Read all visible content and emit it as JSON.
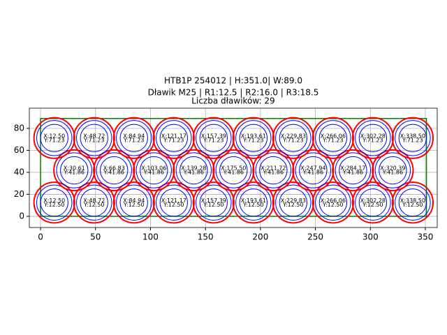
{
  "chart_data": {
    "type": "circle_layout",
    "title": [
      "HTB1P 254012 | H:351.0| W:89.0",
      "Dławik M25 | R1:12.5 | R2:16.0 | R3:18.5"
    ],
    "subtitle": "Liczba dławików: 29",
    "r1": 12.5,
    "r2": 16.0,
    "r3": 18.5,
    "rect": {
      "width": 351.0,
      "height": 89.0,
      "color": "#008000"
    },
    "x": [
      12.5,
      48.72,
      84.94,
      121.17,
      157.39,
      193.61,
      229.83,
      266.06,
      302.28,
      338.5,
      30.61,
      66.83,
      103.06,
      139.28,
      175.5,
      211.72,
      247.94,
      284.17,
      320.39,
      12.5,
      48.72,
      84.94,
      121.17,
      157.39,
      193.61,
      229.83,
      266.06,
      302.28,
      338.5
    ],
    "y": [
      12.5,
      12.5,
      12.5,
      12.5,
      12.5,
      12.5,
      12.5,
      12.5,
      12.5,
      12.5,
      41.86,
      41.86,
      41.86,
      41.86,
      41.86,
      41.86,
      41.86,
      41.86,
      41.86,
      71.23,
      71.23,
      71.23,
      71.23,
      71.23,
      71.23,
      71.23,
      71.23,
      71.23,
      71.23
    ],
    "x_labels": [
      "X:12.50",
      "X:48.72",
      "X:84.94",
      "X:121.17",
      "X:157.39",
      "X:193.61",
      "X:229.83",
      "X:266.06",
      "X:302.28",
      "X:338.50",
      "X:30.61",
      "X:66.83",
      "X:103.06",
      "X:139.28",
      "X:175.50",
      "X:211.72",
      "X:247.94",
      "X:284.17",
      "X:320.39",
      "X:12.50",
      "X:48.72",
      "X:84.94",
      "X:121.17",
      "X:157.39",
      "X:193.61",
      "X:229.83",
      "X:266.06",
      "X:302.28",
      "X:338.50"
    ],
    "y_labels": [
      "Y:12.50",
      "Y:12.50",
      "Y:12.50",
      "Y:12.50",
      "Y:12.50",
      "Y:12.50",
      "Y:12.50",
      "Y:12.50",
      "Y:12.50",
      "Y:12.50",
      "Y:41.86",
      "Y:41.86",
      "Y:41.86",
      "Y:41.86",
      "Y:41.86",
      "Y:41.86",
      "Y:41.86",
      "Y:41.86",
      "Y:41.86",
      "Y:71.23",
      "Y:71.23",
      "Y:71.23",
      "Y:71.23",
      "Y:71.23",
      "Y:71.23",
      "Y:71.23",
      "Y:71.23",
      "Y:71.23",
      "Y:71.23"
    ],
    "outer_color": "#ff0000",
    "inner_color": "#0000ff",
    "xlim": [
      -10.2,
      360.8
    ],
    "ylim": [
      -10.2,
      98.4
    ],
    "xticks": [
      0,
      50,
      100,
      150,
      200,
      250,
      300,
      350
    ],
    "yticks": [
      0,
      20,
      40,
      60,
      80
    ],
    "grid": true
  }
}
